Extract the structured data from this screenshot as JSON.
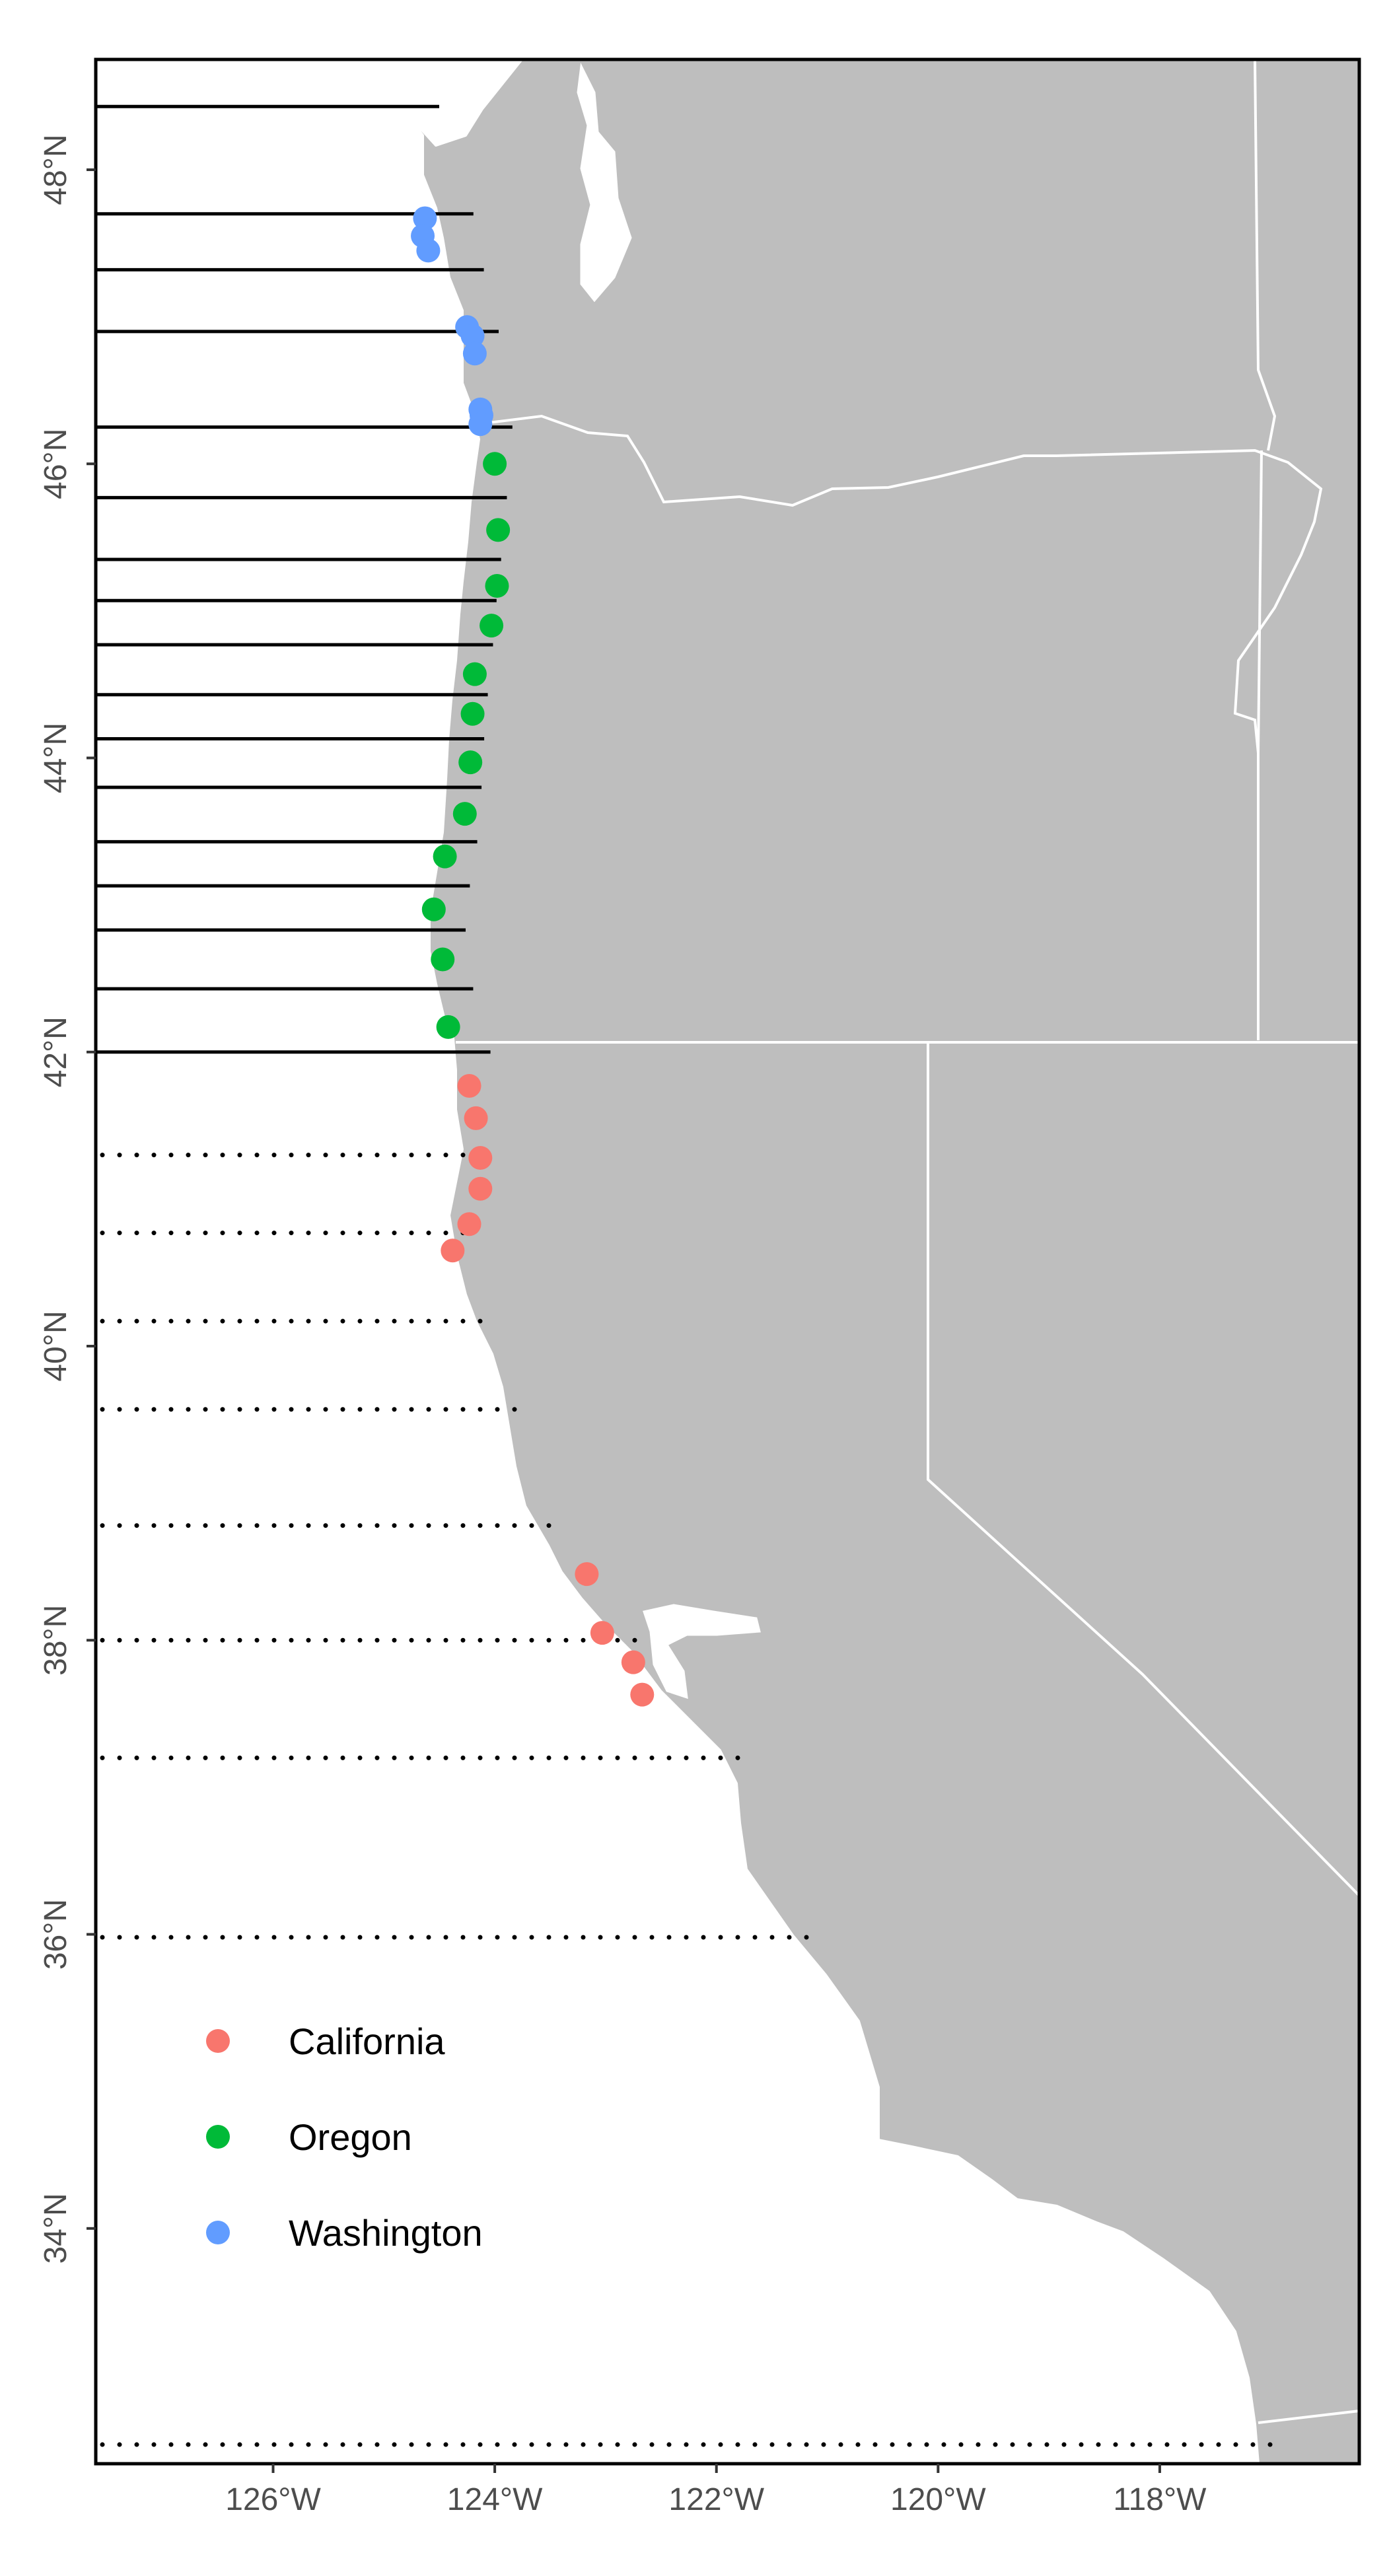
{
  "colors": {
    "land": "#bebebe",
    "border": "#ffffff",
    "water": "#ffffff",
    "line": "#000000",
    "axis_text": "#4d4d4d",
    "California": "#f8766d",
    "Oregon": "#00ba38",
    "Washington": "#619cff"
  },
  "chart_data": {
    "type": "scatter",
    "subtype": "map",
    "x_ticks": [
      "126°W",
      "124°W",
      "122°W",
      "120°W",
      "118°W"
    ],
    "x_tick_values": [
      -126,
      -124,
      -122,
      -120,
      -118
    ],
    "y_ticks": [
      "34°N",
      "36°N",
      "38°N",
      "40°N",
      "42°N",
      "44°N",
      "46°N",
      "48°N"
    ],
    "y_tick_values": [
      34,
      36,
      38,
      40,
      42,
      44,
      46,
      48
    ],
    "xlim": [
      -127.6,
      -116.2
    ],
    "ylim": [
      32.4,
      48.75
    ],
    "legend": {
      "placement": "bottom-left",
      "entries": [
        "California",
        "Oregon",
        "Washington"
      ]
    },
    "series": [
      {
        "name": "Washington",
        "points": [
          [
            -124.63,
            47.67
          ],
          [
            -124.65,
            47.55
          ],
          [
            -124.6,
            47.45
          ],
          [
            -124.25,
            46.93
          ],
          [
            -124.2,
            46.87
          ],
          [
            -124.18,
            46.75
          ],
          [
            -124.13,
            46.37
          ],
          [
            -124.12,
            46.33
          ],
          [
            -124.13,
            46.27
          ]
        ]
      },
      {
        "name": "Oregon",
        "points": [
          [
            -124.0,
            46.0
          ],
          [
            -123.97,
            45.55
          ],
          [
            -123.98,
            45.17
          ],
          [
            -124.03,
            44.9
          ],
          [
            -124.18,
            44.57
          ],
          [
            -124.2,
            44.3
          ],
          [
            -124.22,
            43.97
          ],
          [
            -124.27,
            43.62
          ],
          [
            -124.45,
            43.33
          ],
          [
            -124.55,
            42.97
          ],
          [
            -124.47,
            42.63
          ],
          [
            -124.42,
            42.17
          ]
        ]
      },
      {
        "name": "California",
        "points": [
          [
            -124.23,
            41.77
          ],
          [
            -124.17,
            41.55
          ],
          [
            -124.13,
            41.28
          ],
          [
            -124.13,
            41.07
          ],
          [
            -124.23,
            40.83
          ],
          [
            -124.38,
            40.65
          ],
          [
            -123.17,
            38.45
          ],
          [
            -123.03,
            38.05
          ],
          [
            -122.75,
            37.85
          ],
          [
            -122.67,
            37.63
          ]
        ]
      }
    ],
    "solid_lines_lat": [
      48.43,
      47.7,
      47.32,
      46.9,
      46.25,
      45.77,
      45.35,
      45.07,
      44.77,
      44.43,
      44.13,
      43.8,
      43.43,
      43.13,
      42.83,
      42.43,
      42.0
    ],
    "dotted_lines_lat": [
      41.3,
      40.77,
      40.17,
      39.57,
      38.78,
      38.0,
      37.2,
      35.98,
      32.53
    ]
  }
}
